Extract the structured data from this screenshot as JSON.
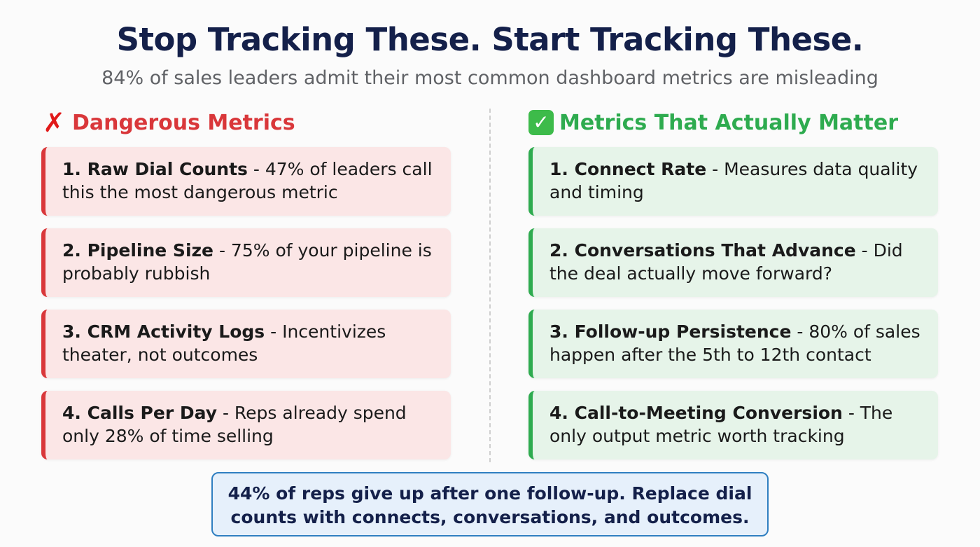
{
  "header": {
    "title": "Stop Tracking These. Start Tracking These.",
    "subtitle": "84% of sales leaders admit their most common dashboard metrics are misleading"
  },
  "left": {
    "icon": "✗",
    "icon_name": "red-x-icon",
    "heading": "Dangerous Metrics",
    "accent_color": "#d9373a",
    "items": [
      {
        "title": "1. Raw Dial Counts",
        "desc": " - 47% of leaders call this the most dangerous metric"
      },
      {
        "title": "2. Pipeline Size",
        "desc": " - 75% of your pipeline is probably rubbish"
      },
      {
        "title": "3. CRM Activity Logs",
        "desc": " - Incentivizes theater, not outcomes"
      },
      {
        "title": "4. Calls Per Day",
        "desc": " - Reps already spend only 28% of time selling"
      }
    ]
  },
  "right": {
    "icon": "✓",
    "icon_name": "green-check-icon",
    "heading": "Metrics That Actually Matter",
    "accent_color": "#2eab4f",
    "items": [
      {
        "title": "1. Connect Rate",
        "desc": " - Measures data quality and timing"
      },
      {
        "title": "2. Conversations That Advance",
        "desc": " - Did the deal actually move forward?"
      },
      {
        "title": "3. Follow-up Persistence",
        "desc": " - 80% of sales happen after the 5th to 12th contact"
      },
      {
        "title": "4. Call-to-Meeting Conversion",
        "desc": " - The only output metric worth tracking"
      }
    ]
  },
  "footer": {
    "text": "44% of reps give up after one follow-up. Replace dial counts with connects, conversations, and outcomes."
  }
}
